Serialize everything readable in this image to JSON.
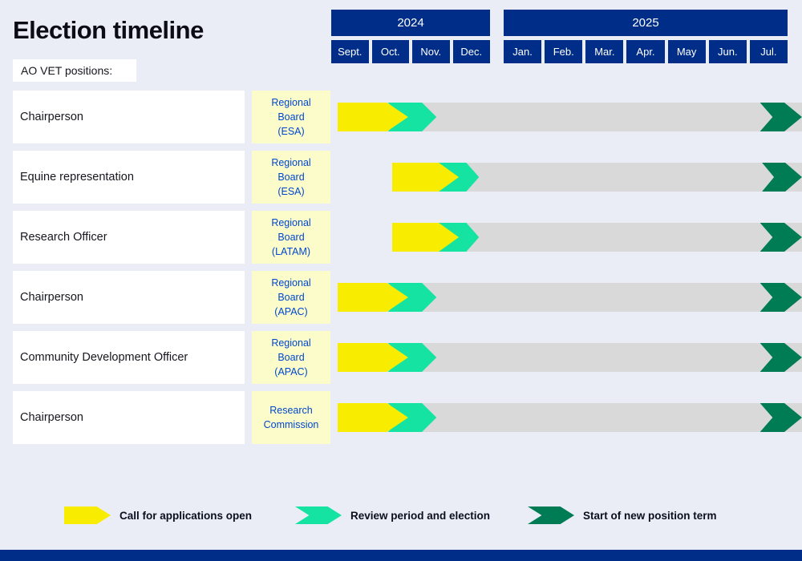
{
  "page": {
    "title": "Election timeline",
    "positions_label": "AO VET positions:"
  },
  "colors": {
    "background": "#ebedf6",
    "navy": "#002d87",
    "yellow": "#f8ec00",
    "green": "#15e3a1",
    "dark_green": "#007c55",
    "bar_gray": "#d9d9d9",
    "board_bg": "#fcfccb",
    "board_text": "#0047d0",
    "white": "#ffffff"
  },
  "chart_data": {
    "type": "timeline",
    "title": "Election timeline",
    "units": "month index: 0 = Sept 2024, 10 = Jul 2025",
    "years": [
      {
        "label": "2024",
        "months": [
          "Sept.",
          "Oct.",
          "Nov.",
          "Dec."
        ]
      },
      {
        "label": "2025",
        "months": [
          "Jan.",
          "Feb.",
          "Mar.",
          "Apr.",
          "May",
          "Jun.",
          "Jul."
        ]
      }
    ],
    "rows": [
      {
        "position": "Chairperson",
        "board": "Regional\nBoard\n(ESA)",
        "bar_start": 0.15,
        "applications": {
          "start": 0.15,
          "end": 1.9
        },
        "review": {
          "start": 1.4,
          "end": 2.6
        },
        "term_start": 10.25
      },
      {
        "position": "Equine representation",
        "board": "Regional\nBoard\n(ESA)",
        "bar_start": 1.5,
        "applications": {
          "start": 1.5,
          "end": 3.15
        },
        "review": {
          "start": 2.6,
          "end": 3.65
        },
        "term_start": 10.3
      },
      {
        "position": "Research Officer",
        "board": "Regional\nBoard\n(LATAM)",
        "bar_start": 1.5,
        "applications": {
          "start": 1.5,
          "end": 3.15
        },
        "review": {
          "start": 2.6,
          "end": 3.65
        },
        "term_start": 10.25
      },
      {
        "position": "Chairperson",
        "board": "Regional\nBoard\n(APAC)",
        "bar_start": 0.15,
        "applications": {
          "start": 0.15,
          "end": 1.9
        },
        "review": {
          "start": 1.4,
          "end": 2.6
        },
        "term_start": 10.25
      },
      {
        "position": "Community Development Officer",
        "board": "Regional\nBoard\n(APAC)",
        "bar_start": 0.15,
        "applications": {
          "start": 0.15,
          "end": 1.9
        },
        "review": {
          "start": 1.4,
          "end": 2.6
        },
        "term_start": 10.25
      },
      {
        "position": "Chairperson",
        "board": "Research\nCommission",
        "bar_start": 0.15,
        "applications": {
          "start": 0.15,
          "end": 1.9
        },
        "review": {
          "start": 1.4,
          "end": 2.6
        },
        "term_start": 10.25
      }
    ]
  },
  "legend": [
    {
      "label": "Call for applications open",
      "color": "#f8ec00",
      "shape": "pentagon"
    },
    {
      "label": "Review period and election",
      "color": "#15e3a1",
      "shape": "chevron"
    },
    {
      "label": "Start of new position term",
      "color": "#007c55",
      "shape": "chevron"
    }
  ]
}
